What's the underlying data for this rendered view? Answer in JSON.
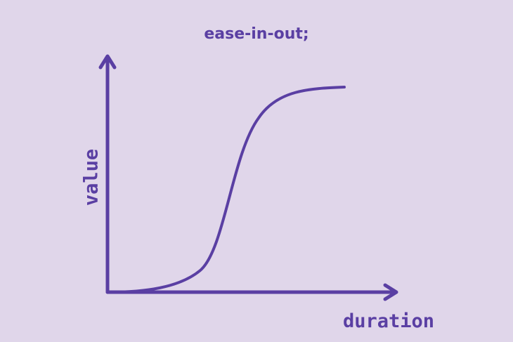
{
  "title": "ease-in-out;",
  "axes": {
    "x_label": "duration",
    "y_label": "value"
  },
  "colors": {
    "background": "#e0d6ea",
    "ink": "#5a3fa3"
  }
}
